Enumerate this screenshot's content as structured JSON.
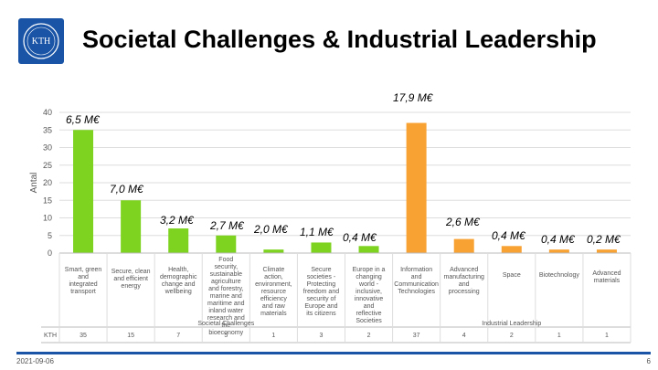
{
  "header": {
    "title": "Societal Challenges & Industrial Leadership",
    "logo_text": "KTH"
  },
  "footer": {
    "date": "2021-09-06",
    "page": "6"
  },
  "colors": {
    "green": "#7ed321",
    "orange": "#f8a234",
    "accent": "#1954a6"
  },
  "chart_data": {
    "type": "bar",
    "ylabel": "Antal",
    "ylim": [
      0,
      40
    ],
    "yticks": [
      0,
      5,
      10,
      15,
      20,
      25,
      30,
      35,
      40
    ],
    "grid": true,
    "row_label": "KTH",
    "groups": [
      {
        "name": "Societal Challenges",
        "color": "#7ed321",
        "start": 0,
        "end": 6
      },
      {
        "name": "Industrial Leadership",
        "color": "#f8a234",
        "start": 7,
        "end": 11
      }
    ],
    "categories": [
      "Smart, green and integrated transport",
      "Secure, clean and efficient energy",
      "Health, demographic change and wellbeing",
      "Food security, sustainable agriculture and forestry, marine and maritime and inland water research and the bioeconomy",
      "Climate action, environment, resource efficiency and raw materials",
      "Secure societies - Protecting freedom and security of Europe and its citizens",
      "Europe in a changing world - inclusive, innovative and reflective Societies",
      "Information and Communication Technologies",
      "Advanced manufacturing and processing",
      "Space",
      "Biotechnology",
      "Advanced materials"
    ],
    "values": [
      35,
      15,
      7,
      5,
      1,
      3,
      2,
      37,
      4,
      2,
      1,
      1
    ],
    "data_labels": [
      "6,5 M€",
      "7,0 M€",
      "3,2 M€",
      "2,7 M€",
      "2,0 M€",
      "1,1 M€",
      "0,4 M€",
      "17,9 M€",
      "2,6 M€",
      "0,4 M€",
      "0,4 M€",
      "0,2 M€"
    ],
    "table_values": [
      "35",
      "15",
      "7",
      "5",
      "1",
      "3",
      "2",
      "37",
      "4",
      "2",
      "1",
      "1"
    ]
  }
}
